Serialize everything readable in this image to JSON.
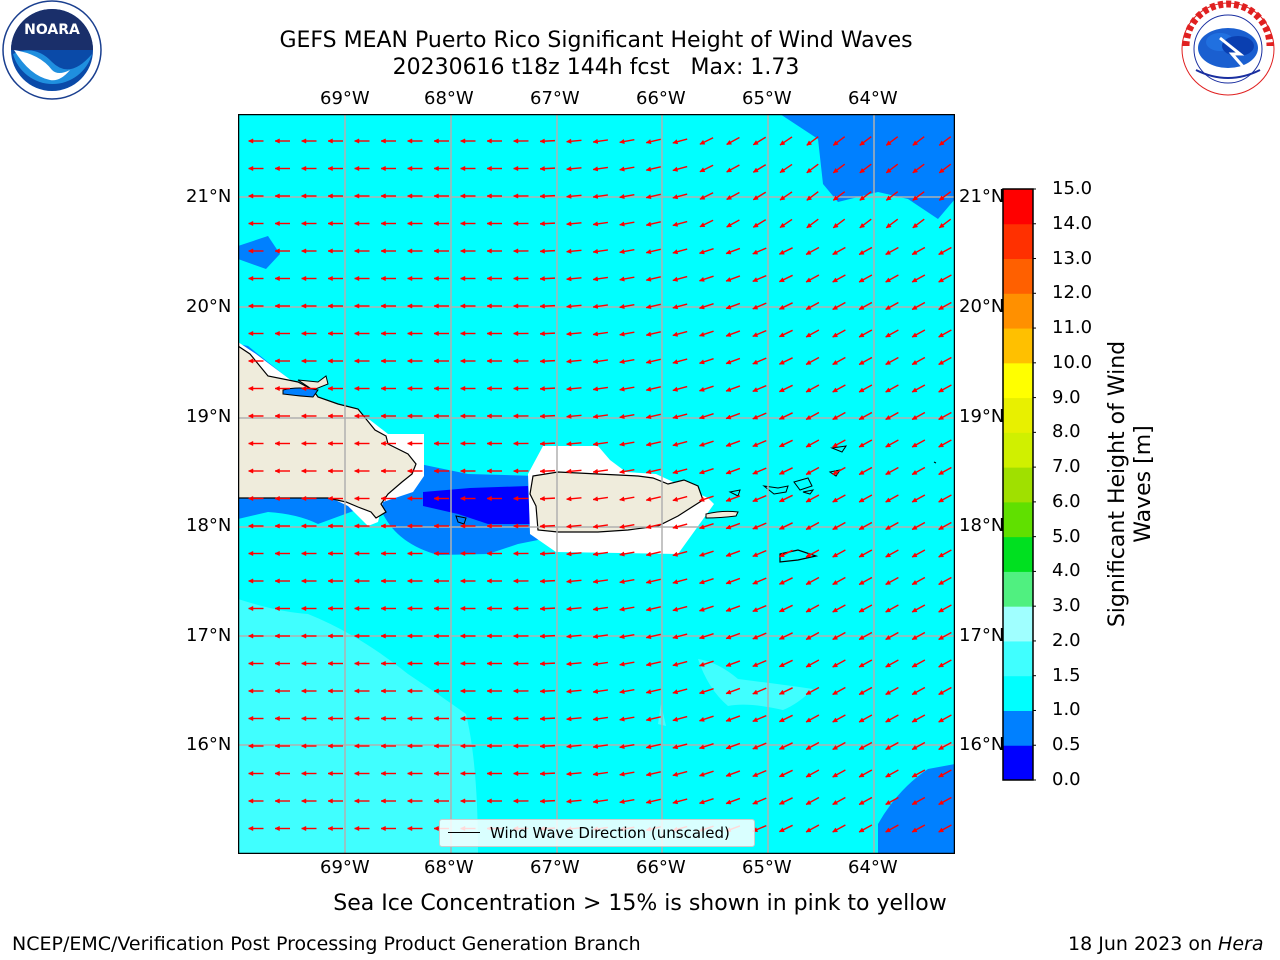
{
  "header": {
    "title_line1": "GEFS MEAN Puerto Rico Significant Height of Wind Waves",
    "title_line2": "20230616 t18z 144h fcst   Max: 1.73"
  },
  "logos": {
    "left": {
      "name": "NOARA",
      "ring_text": "NATIONAL OCEANIC AND ATMOSPHERIC ADMINISTRATION · U.S. DEPARTMENT OF COMMERCE"
    },
    "right": {
      "ring_text": "NATIONAL WEATHER SERVICE"
    }
  },
  "map": {
    "lon_ticks": [
      "69°W",
      "68°W",
      "67°W",
      "66°W",
      "65°W",
      "64°W"
    ],
    "lat_ticks": [
      "21°N",
      "20°N",
      "19°N",
      "18°N",
      "17°N",
      "16°N"
    ],
    "legend_label": "Wind Wave Direction (unscaled)",
    "colors": {
      "land": "#efecdc",
      "ocean_main": "#00ffff",
      "ocean_low": "#0080ff",
      "ocean_lowest": "#0000ff",
      "ocean_high": "#40ffff",
      "arrow": "#ff0000"
    }
  },
  "colorbar": {
    "label": "Significant Height of Wind Waves [m]",
    "ticks": [
      "0.0",
      "0.5",
      "1.0",
      "1.5",
      "2.0",
      "3.0",
      "4.0",
      "5.0",
      "6.0",
      "7.0",
      "8.0",
      "9.0",
      "10.0",
      "11.0",
      "12.0",
      "13.0",
      "14.0",
      "15.0"
    ],
    "colors": [
      "#0000ff",
      "#0080ff",
      "#00ffff",
      "#40ffff",
      "#a0ffff",
      "#50f080",
      "#00e020",
      "#60e000",
      "#a0e000",
      "#d0f000",
      "#e8f000",
      "#ffff00",
      "#ffc000",
      "#ff9000",
      "#ff6000",
      "#ff3000",
      "#ff0000"
    ]
  },
  "caption": "Sea Ice Concentration > 15% is shown in pink to yellow",
  "footer": {
    "left": "NCEP/EMC/Verification Post Processing Product Generation Branch",
    "right_prefix": "18 Jun 2023 on ",
    "right_host": "Hera"
  }
}
